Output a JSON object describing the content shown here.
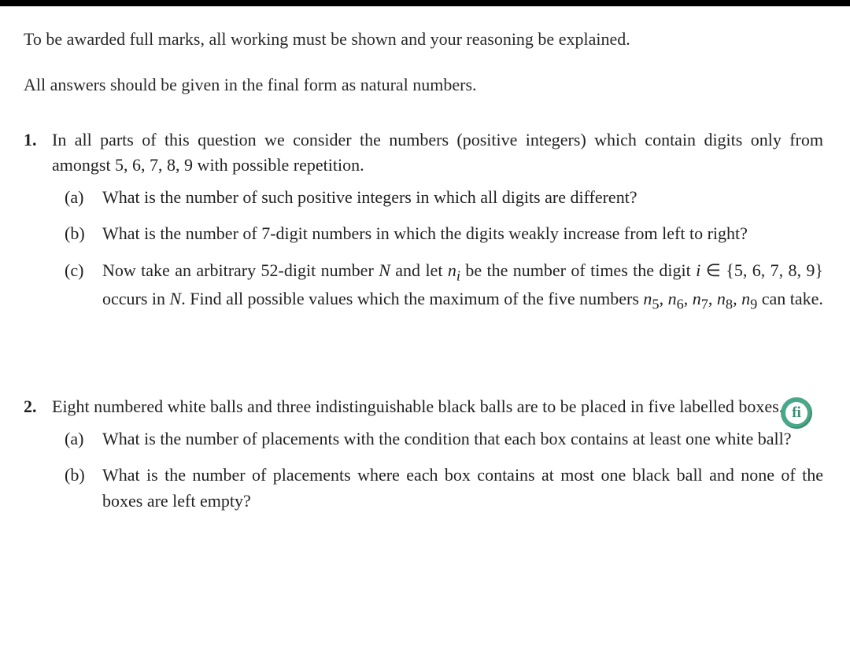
{
  "preamble": {
    "line1": "To be awarded full marks, all working must be shown and your reasoning be explained.",
    "line2": "All answers should be given in the final form as natural numbers."
  },
  "questions": [
    {
      "number": "1.",
      "intro_html": "In all parts of this question we consider the numbers (positive integers) which contain digits only from amongst 5, 6, 7, 8, 9 with possible repetition.",
      "parts": [
        {
          "label": "(a)",
          "text_html": "What is the number of such positive integers in which all digits are different?"
        },
        {
          "label": "(b)",
          "text_html": "What is the number of 7-digit numbers in which the digits weakly increase from left to right?"
        },
        {
          "label": "(c)",
          "text_html": "Now take an arbitrary 52-digit number <span class=\"subn\">N</span> and let <span class=\"subn\">n<sub>i</sub></span> be the number of times the digit <span class=\"subn\">i</span> ∈ {5, 6, 7, 8, 9} occurs in <span class=\"subn\">N</span>. Find all possible values which the maximum of the five numbers <span class=\"subn\">n</span><sub>5</sub>, <span class=\"subn\">n</span><sub>6</sub>, <span class=\"subn\">n</span><sub>7</sub>, <span class=\"subn\">n</span><sub>8</sub>, <span class=\"subn\">n</span><sub>9</sub> can take."
        }
      ]
    },
    {
      "number": "2.",
      "intro_html": "Eight numbered white balls and three indistinguishable black balls are to be placed in five labelled boxes.",
      "parts": [
        {
          "label": "(a)",
          "text_html": "What is the number of placements with the condition that each box contains at least one white ball?"
        },
        {
          "label": "(b)",
          "text_html": "What is the number of placements where each box contains at most one black ball and none of the boxes are left empty?"
        }
      ]
    }
  ],
  "badge": {
    "glyph": "fi",
    "bg_color": "#4aa88a",
    "fg_color": "#ffffff"
  }
}
